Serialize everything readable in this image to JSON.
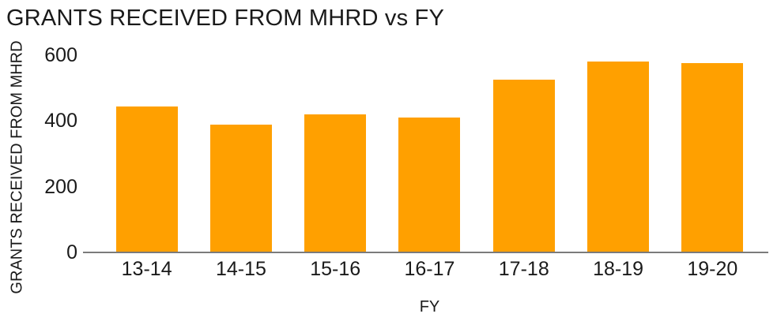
{
  "chart_data": {
    "type": "bar",
    "title": "GRANTS RECEIVED FROM MHRD vs FY",
    "xlabel": "FY",
    "ylabel": "GRANTS RECEIVED FROM MHRD",
    "categories": [
      "13-14",
      "14-15",
      "15-16",
      "16-17",
      "17-18",
      "18-19",
      "19-20"
    ],
    "values": [
      445,
      390,
      420,
      410,
      525,
      580,
      575
    ],
    "ylim": [
      0,
      600
    ],
    "yticks": [
      0,
      200,
      400,
      600
    ],
    "grid": false,
    "legend_position": "none",
    "colors": {
      "bar": "#FFA000",
      "axis_line": "#7B7B7B",
      "text": "#1A1A1A",
      "background": "#FFFFFF"
    }
  }
}
